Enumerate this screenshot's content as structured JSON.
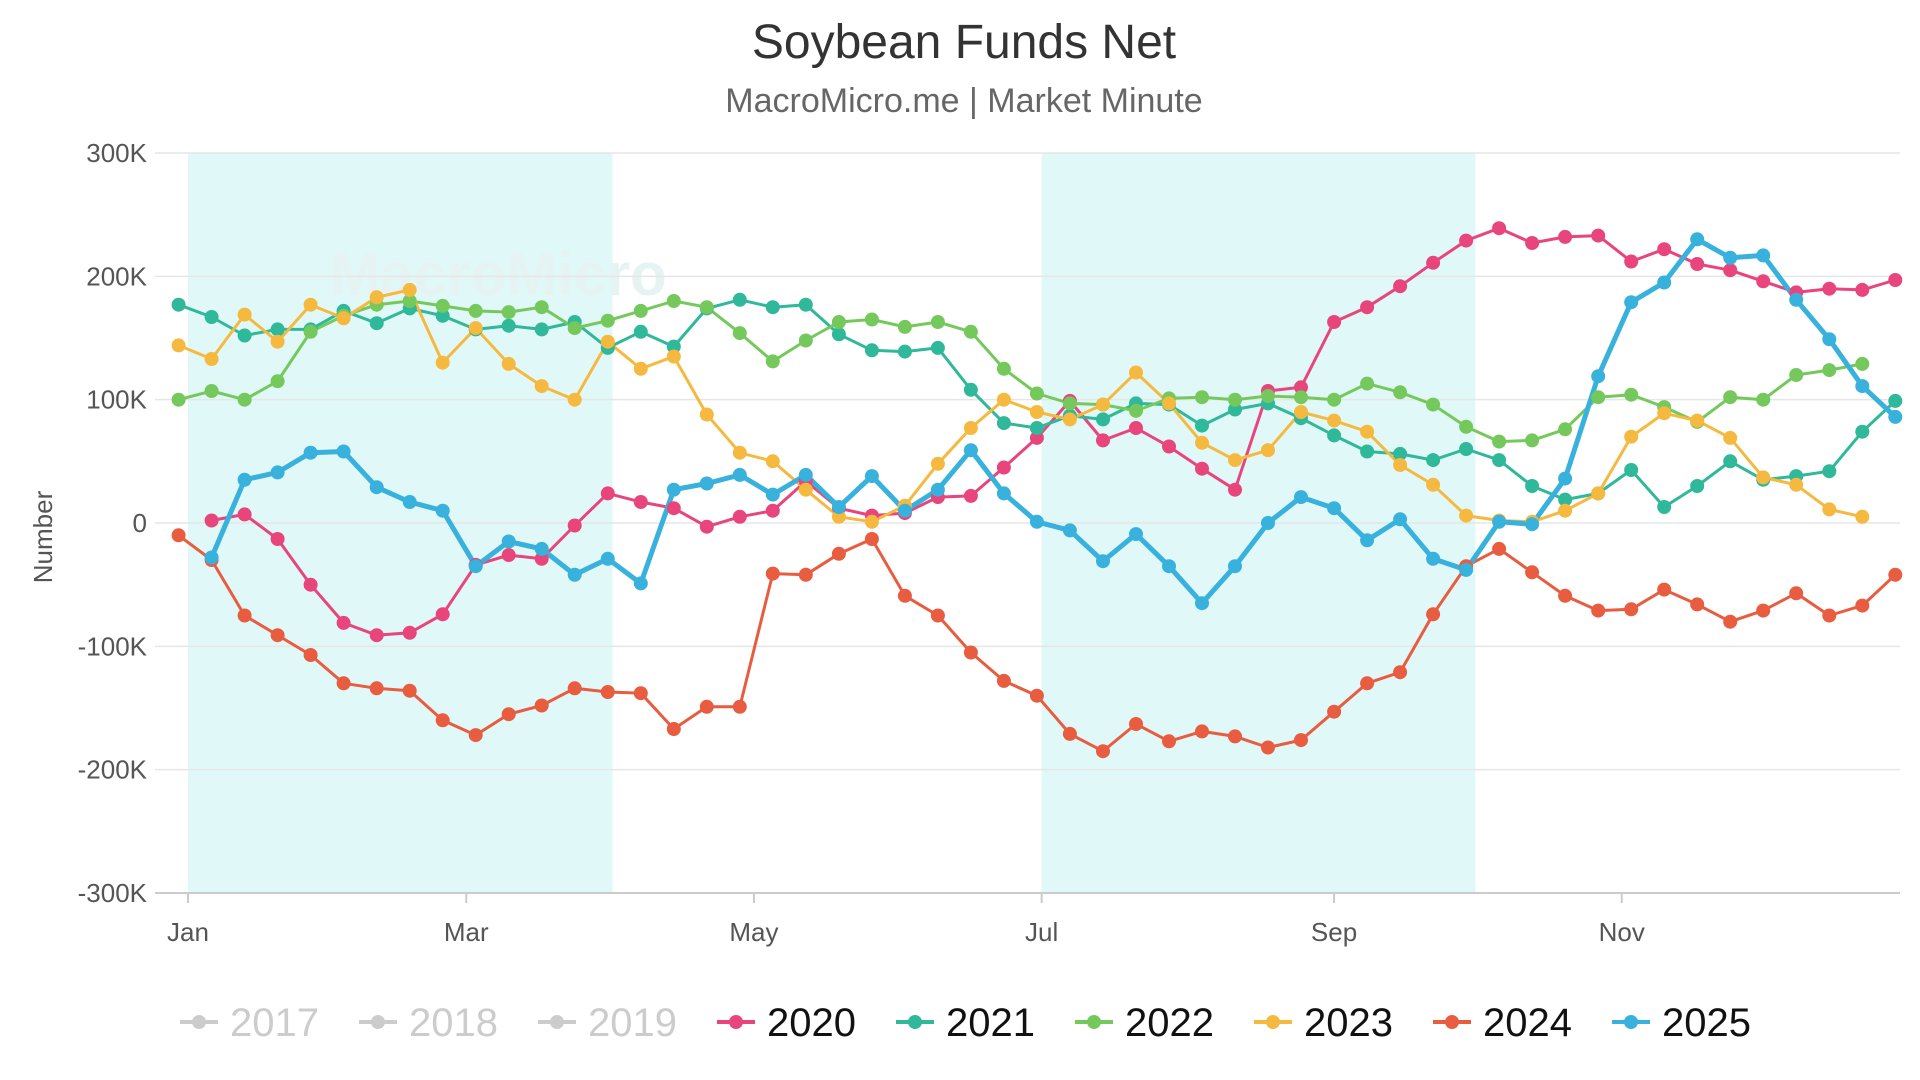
{
  "chart_data": {
    "type": "line",
    "title": "Soybean Funds Net",
    "subtitle": "MacroMicro.me | Market Minute",
    "watermark": "MacroMicro",
    "ylabel": "Number",
    "xlabel": "",
    "ylim": [
      -300000,
      300000
    ],
    "ytick_values": [
      -300000,
      -200000,
      -100000,
      0,
      100000,
      200000,
      300000
    ],
    "ytick_labels": [
      "-300K",
      "-200K",
      "-100K",
      "0",
      "100K",
      "200K",
      "300K"
    ],
    "x_unit": "day of year",
    "xlim": [
      -7,
      363
    ],
    "xticks": [
      {
        "label": "Jan",
        "day": 0
      },
      {
        "label": "Mar",
        "day": 59
      },
      {
        "label": "May",
        "day": 120
      },
      {
        "label": "Jul",
        "day": 181
      },
      {
        "label": "Sep",
        "day": 243
      },
      {
        "label": "Nov",
        "day": 304
      }
    ],
    "shaded_bands": [
      {
        "from_day": 0,
        "to_day": 90
      },
      {
        "from_day": 181,
        "to_day": 273
      }
    ],
    "band_color": "#e1f8f8",
    "grid": true,
    "legend_position": "bottom",
    "series": [
      {
        "name": "2017",
        "color": "#cccccc",
        "visible": false,
        "start_day": -2,
        "values": []
      },
      {
        "name": "2018",
        "color": "#cccccc",
        "visible": false,
        "start_day": -2,
        "values": []
      },
      {
        "name": "2019",
        "color": "#cccccc",
        "visible": false,
        "start_day": -2,
        "values": []
      },
      {
        "name": "2020",
        "color": "#e8457c",
        "visible": true,
        "start_day": 5,
        "line_width": 3,
        "values": [
          2000,
          7000,
          -13000,
          -50000,
          -81000,
          -91000,
          -89000,
          -74000,
          -34000,
          -26000,
          -29000,
          -2000,
          24000,
          17000,
          12000,
          -3000,
          5000,
          10000,
          34000,
          12000,
          6000,
          8000,
          21000,
          22000,
          45000,
          69000,
          99000,
          67000,
          77000,
          62000,
          44000,
          27000,
          107000,
          110000,
          163000,
          175000,
          192000,
          211000,
          229000,
          239000,
          227000,
          232000,
          233000,
          212000,
          222000,
          210000,
          205000,
          196000,
          187000,
          190000,
          189000,
          197000
        ]
      },
      {
        "name": "2021",
        "color": "#2fb899",
        "visible": true,
        "start_day": -2,
        "line_width": 3,
        "values": [
          177000,
          167000,
          152000,
          157000,
          157000,
          172000,
          162000,
          174000,
          168000,
          157000,
          160000,
          157000,
          163000,
          142000,
          155000,
          143000,
          174000,
          181000,
          175000,
          177000,
          153000,
          140000,
          139000,
          142000,
          108000,
          81000,
          77000,
          87000,
          84000,
          97000,
          96000,
          79000,
          92000,
          97000,
          85000,
          71000,
          58000,
          56000,
          51000,
          60000,
          51000,
          30000,
          19000,
          24000,
          43000,
          13000,
          30000,
          50000,
          35000,
          38000,
          42000,
          74000,
          99000
        ]
      },
      {
        "name": "2022",
        "color": "#75c95c",
        "visible": true,
        "start_day": -2,
        "line_width": 3,
        "values": [
          100000,
          107000,
          100000,
          115000,
          155000,
          168000,
          177000,
          180000,
          176000,
          172000,
          171000,
          175000,
          158000,
          164000,
          172000,
          180000,
          175000,
          154000,
          131000,
          148000,
          163000,
          165000,
          159000,
          163000,
          155000,
          125000,
          105000,
          97000,
          96000,
          91000,
          101000,
          102000,
          100000,
          103000,
          102000,
          100000,
          113000,
          106000,
          96000,
          78000,
          66000,
          67000,
          76000,
          102000,
          104000,
          94000,
          82000,
          102000,
          100000,
          120000,
          124000,
          129000
        ]
      },
      {
        "name": "2023",
        "color": "#f5b940",
        "visible": true,
        "start_day": -2,
        "line_width": 3,
        "values": [
          144000,
          133000,
          169000,
          147000,
          177000,
          166000,
          183000,
          189000,
          130000,
          158000,
          129000,
          111000,
          100000,
          147000,
          125000,
          135000,
          88000,
          57000,
          50000,
          27000,
          5000,
          1000,
          14000,
          48000,
          77000,
          100000,
          90000,
          84000,
          96000,
          122000,
          97000,
          65000,
          51000,
          59000,
          90000,
          83000,
          74000,
          47000,
          31000,
          6000,
          2000,
          1000,
          10000,
          24000,
          70000,
          89000,
          83000,
          69000,
          37000,
          31000,
          11000,
          5000
        ]
      },
      {
        "name": "2024",
        "color": "#e85c3f",
        "visible": true,
        "start_day": -2,
        "line_width": 3,
        "values": [
          -10000,
          -30000,
          -75000,
          -91000,
          -107000,
          -130000,
          -134000,
          -136000,
          -160000,
          -172000,
          -155000,
          -148000,
          -134000,
          -137000,
          -138000,
          -167000,
          -149000,
          -149000,
          -41000,
          -42000,
          -25000,
          -13000,
          -59000,
          -75000,
          -105000,
          -128000,
          -140000,
          -171000,
          -185000,
          -163000,
          -177000,
          -169000,
          -173000,
          -182000,
          -176000,
          -153000,
          -130000,
          -121000,
          -74000,
          -35000,
          -21000,
          -40000,
          -59000,
          -71000,
          -70000,
          -54000,
          -66000,
          -80000,
          -71000,
          -57000,
          -75000,
          -67000,
          -42000
        ]
      },
      {
        "name": "2025",
        "color": "#38b1dc",
        "visible": true,
        "start_day": 5,
        "line_width": 5,
        "values": [
          -28000,
          35000,
          41000,
          57000,
          58000,
          29000,
          17000,
          10000,
          -35000,
          -15000,
          -21000,
          -42000,
          -29000,
          -49000,
          27000,
          32000,
          39000,
          23000,
          39000,
          13000,
          38000,
          10000,
          27000,
          59000,
          24000,
          1000,
          -6000,
          -31000,
          -9000,
          -35000,
          -65000,
          -35000,
          0,
          21000,
          12000,
          -14000,
          3000,
          -29000,
          -38000,
          1000,
          -1000,
          36000,
          119000,
          179000,
          195000,
          230000,
          215000,
          217000,
          181000,
          149000,
          111000,
          86000
        ]
      }
    ]
  }
}
